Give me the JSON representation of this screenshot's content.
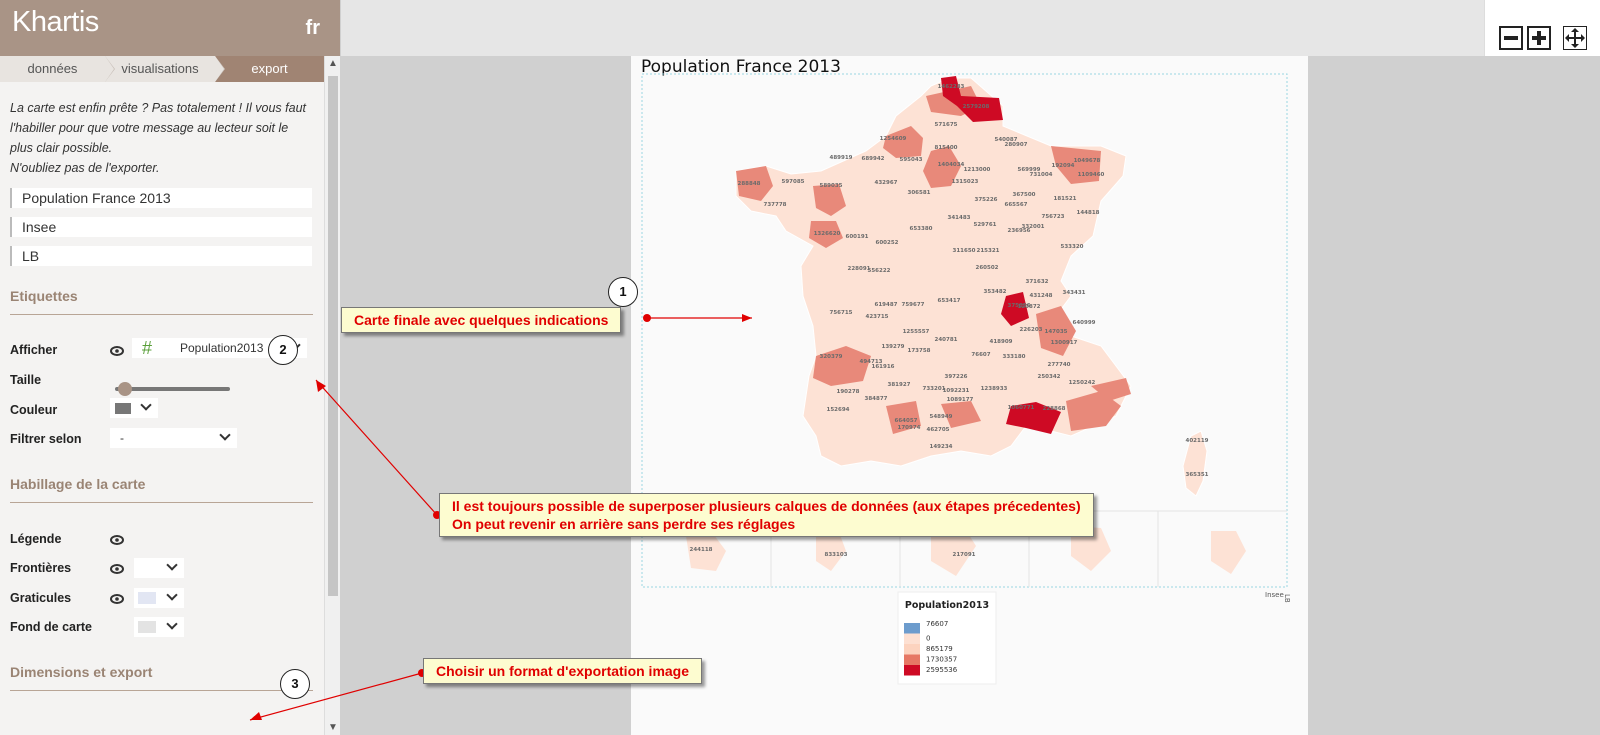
{
  "app": {
    "name": "Khartis",
    "lang": "fr"
  },
  "breadcrumb": [
    "données",
    "visualisations",
    "export"
  ],
  "intro": {
    "line1": "La carte est enfin prête ? Pas totalement ! Il vous faut",
    "line2": "l'habiller pour que votre message au lecteur soit le",
    "line3": "plus clair possible.",
    "line4": "N'oubliez pas de l'exporter."
  },
  "fields": {
    "title": "Population France 2013",
    "source": "Insee",
    "author": "LB"
  },
  "labels_section": {
    "heading": "Etiquettes",
    "show_label": "Afficher",
    "show_hash": "#",
    "show_value": "Population2013",
    "size_label": "Taille",
    "size_level": 0.05,
    "color_label": "Couleur",
    "color": "#777777",
    "filter_label": "Filtrer selon",
    "filter_value": "-"
  },
  "dressing_section": {
    "heading": "Habillage de la carte",
    "legend_label": "Légende",
    "borders_label": "Frontières",
    "graticules_label": "Graticules",
    "graticules_color": "#e2e6f3",
    "basemap_label": "Fond de carte",
    "basemap_color": "#e3e3e3"
  },
  "export_section": {
    "heading": "Dimensions et export"
  },
  "toolbar": {
    "zoom_out_icon": "minus-icon",
    "zoom_in_icon": "plus-icon",
    "move_icon": "move-icon"
  },
  "map": {
    "title": "Population France 2013",
    "source": "Insee",
    "author": "LB",
    "legend_title": "Population2013",
    "legend": [
      {
        "label": "76607",
        "color": "#6d9ccd"
      },
      {
        "label": "0",
        "color": "#fde0d2"
      },
      {
        "label": "865179",
        "color": "#fcd3bf"
      },
      {
        "label": "1730357",
        "color": "#e67865"
      },
      {
        "label": "2595536",
        "color": "#ce0a24"
      }
    ],
    "department_labels": [
      "1462283",
      "2579208",
      "571675",
      "280907",
      "815400",
      "540087",
      "1254609",
      "489919",
      "689942",
      "595043",
      "1404034",
      "1213000",
      "569999",
      "192094",
      "731004",
      "1049678",
      "1109460",
      "597085",
      "288848",
      "432967",
      "306581",
      "1315023",
      "367500",
      "589035",
      "665567",
      "341483",
      "181521",
      "375226",
      "756723",
      "144818",
      "737778",
      "1326620",
      "600191",
      "332001",
      "236956",
      "600252",
      "529761",
      "653380",
      "311650",
      "215321",
      "533320",
      "228091",
      "556222",
      "260502",
      "371632",
      "431248",
      "343431",
      "619487",
      "759677",
      "653417",
      "353482",
      "375856",
      "120872",
      "640999",
      "756715",
      "423715",
      "1255557",
      "240781",
      "418909",
      "147035",
      "226203",
      "1300917",
      "320379",
      "494713",
      "139279",
      "173758",
      "76607",
      "333180",
      "277740",
      "161916",
      "397226",
      "250342",
      "190278",
      "381927",
      "733201",
      "1092231",
      "1089177",
      "1238933",
      "548949",
      "1060771",
      "228868",
      "1250242",
      "664057",
      "384877",
      "152694",
      "462705",
      "170974",
      "149234",
      "402119",
      "365351",
      "244118",
      "833103",
      "217091"
    ]
  },
  "annotations": {
    "note1": "Carte finale avec quelques indications",
    "note2_line1": "Il est toujours possible de superposer plusieurs calques de données (aux étapes précedentes)",
    "note2_line2": "On peut revenir en arrière sans perdre ses réglages",
    "note3": "Choisir un format d'exportation image",
    "num1": "1",
    "num2": "2",
    "num3": "3"
  }
}
